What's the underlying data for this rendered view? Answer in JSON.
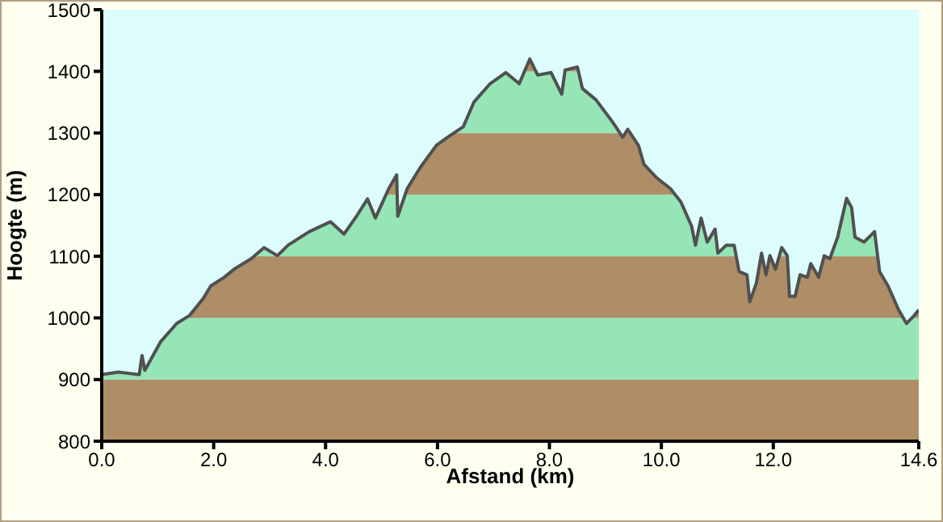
{
  "chart_data": {
    "type": "area",
    "xlabel": "Afstand  (km)",
    "ylabel": "Hoogte (m)",
    "x": [
      0,
      0.3,
      0.67,
      0.72,
      0.77,
      1.05,
      1.34,
      1.57,
      1.81,
      1.95,
      2.19,
      2.38,
      2.67,
      2.9,
      3.14,
      3.33,
      3.71,
      4.09,
      4.33,
      4.56,
      4.75,
      4.89,
      5.13,
      5.27,
      5.29,
      5.46,
      5.7,
      5.98,
      6.18,
      6.46,
      6.65,
      6.94,
      7.22,
      7.46,
      7.65,
      7.79,
      8.03,
      8.22,
      8.28,
      8.5,
      8.59,
      8.83,
      9.12,
      9.31,
      9.4,
      9.59,
      9.69,
      9.92,
      10.16,
      10.35,
      10.54,
      10.61,
      10.71,
      10.82,
      10.96,
      11.01,
      11.16,
      11.3,
      11.39,
      11.53,
      11.58,
      11.7,
      11.79,
      11.87,
      11.94,
      12.04,
      12.15,
      12.25,
      12.29,
      12.39,
      12.48,
      12.61,
      12.67,
      12.81,
      12.91,
      13.01,
      13.15,
      13.31,
      13.4,
      13.46,
      13.62,
      13.81,
      13.9,
      14.05,
      14.24,
      14.38,
      14.52,
      14.6
    ],
    "series": [
      {
        "color": "#505050",
        "values": [
          908,
          912,
          908,
          939,
          915,
          961,
          991,
          1004,
          1031,
          1052,
          1066,
          1080,
          1096,
          1114,
          1101,
          1118,
          1140,
          1156,
          1136,
          1166,
          1193,
          1162,
          1210,
          1232,
          1165,
          1210,
          1245,
          1280,
          1293,
          1310,
          1350,
          1380,
          1398,
          1380,
          1420,
          1394,
          1398,
          1363,
          1402,
          1407,
          1372,
          1354,
          1319,
          1293,
          1306,
          1280,
          1249,
          1227,
          1210,
          1188,
          1149,
          1118,
          1162,
          1123,
          1144,
          1105,
          1118,
          1118,
          1075,
          1070,
          1026,
          1057,
          1105,
          1070,
          1101,
          1079,
          1114,
          1101,
          1035,
          1035,
          1070,
          1066,
          1088,
          1066,
          1101,
          1096,
          1131,
          1194,
          1179,
          1131,
          1123,
          1140,
          1075,
          1052,
          1013,
          991,
          1004,
          1013
        ]
      }
    ],
    "bands": [
      {
        "axis": "y",
        "from": 800,
        "to": 900,
        "color": "#b8946a"
      },
      {
        "axis": "y",
        "from": 900,
        "to": 1000,
        "color": "#9cf2c0"
      },
      {
        "axis": "y",
        "from": 1000,
        "to": 1100,
        "color": "#b8946a"
      },
      {
        "axis": "y",
        "from": 1100,
        "to": 1200,
        "color": "#9cf2c0"
      },
      {
        "axis": "y",
        "from": 1200,
        "to": 1300,
        "color": "#b8946a"
      },
      {
        "axis": "y",
        "from": 1300,
        "to": 1400,
        "color": "#9cf2c0"
      },
      {
        "axis": "y",
        "from": 1400,
        "to": 1500,
        "color": "#b8946a"
      }
    ],
    "xlim": [
      0,
      14.6
    ],
    "xticks": [
      {
        "value": 0,
        "label": "0.0"
      },
      {
        "value": 2,
        "label": "2.0"
      },
      {
        "value": 4,
        "label": "4.0"
      },
      {
        "value": 6,
        "label": "6.0"
      },
      {
        "value": 8,
        "label": "8.0"
      },
      {
        "value": 10,
        "label": "10.0"
      },
      {
        "value": 12,
        "label": "12.0"
      },
      {
        "value": 14.6,
        "label": "14.6"
      }
    ],
    "ylim": [
      800,
      1500
    ],
    "yticks": [
      800,
      900,
      1000,
      1100,
      1200,
      1300,
      1400,
      1500
    ]
  }
}
